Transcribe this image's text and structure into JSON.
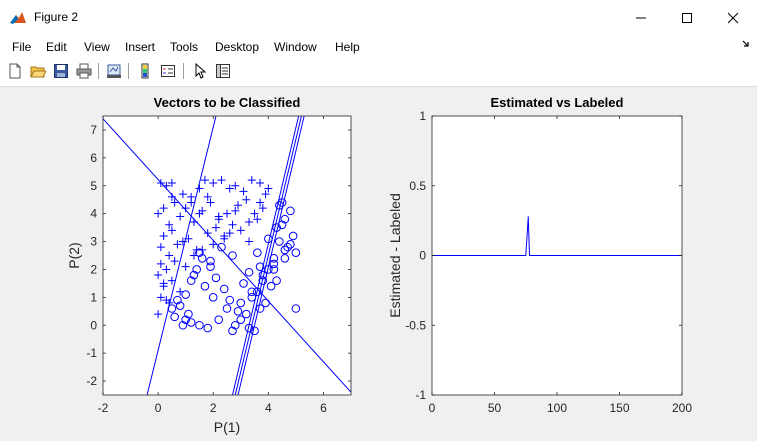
{
  "window": {
    "title": "Figure 2"
  },
  "menu": [
    "File",
    "Edit",
    "View",
    "Insert",
    "Tools",
    "Desktop",
    "Window",
    "Help"
  ],
  "toolbar_icons": [
    "new-figure-icon",
    "open-file-icon",
    "save-icon",
    "print-icon",
    "link-plot-icon",
    "insert-colorbar-icon",
    "insert-legend-icon",
    "edit-plot-icon",
    "property-inspector-icon"
  ],
  "colors": {
    "plot": "#0000ff",
    "axes": "#262626",
    "background": "#f0f0f0"
  },
  "chart_data": [
    {
      "type": "scatter",
      "title": "Vectors to be Classified",
      "xlabel": "P(1)",
      "ylabel": "P(2)",
      "xlim": [
        -2,
        7
      ],
      "ylim": [
        -2.5,
        7.5
      ],
      "xticks": [
        "-2",
        "0",
        "2",
        "4",
        "6"
      ],
      "yticks": [
        "-2",
        "-1",
        "0",
        "1",
        "2",
        "3",
        "4",
        "5",
        "6",
        "7"
      ],
      "series": [
        {
          "marker": "plus",
          "x": [
            0.1,
            0.3,
            0.5,
            0.0,
            0.2,
            0.6,
            0.4,
            0.8,
            1.0,
            1.2,
            1.5,
            1.7,
            2.0,
            2.3,
            2.6,
            2.8,
            3.1,
            3.4,
            3.7,
            3.9,
            4.0,
            0.2,
            0.5,
            0.9,
            1.3,
            1.6,
            1.9,
            2.2,
            2.5,
            2.9,
            3.2,
            3.5,
            3.8,
            0.1,
            0.4,
            0.7,
            1.1,
            1.4,
            1.8,
            2.1,
            2.4,
            2.7,
            3.0,
            3.3,
            3.6,
            0.0,
            0.3,
            0.6,
            1.0,
            1.3,
            1.6,
            2.0,
            2.4,
            0.2,
            0.5,
            0.8,
            0.1,
            0.4,
            0.0,
            0.3,
            0.2,
            0.1,
            0.5,
            1.5,
            1.2,
            0.9,
            2.2,
            2.8,
            3.3,
            3.7,
            1.8,
            2.6
          ],
          "y": [
            5.1,
            5.0,
            5.1,
            4.0,
            4.2,
            4.4,
            3.6,
            3.9,
            4.2,
            4.6,
            4.9,
            5.2,
            5.1,
            5.2,
            4.9,
            5.0,
            4.8,
            5.2,
            5.1,
            4.7,
            4.9,
            3.2,
            3.4,
            3.0,
            3.7,
            4.1,
            4.4,
            3.8,
            4.0,
            4.3,
            4.5,
            4.0,
            4.2,
            2.8,
            2.5,
            2.9,
            3.1,
            2.7,
            3.3,
            3.5,
            3.2,
            3.6,
            3.4,
            3.0,
            3.8,
            1.8,
            2.0,
            2.3,
            2.1,
            2.5,
            2.7,
            2.9,
            3.1,
            1.4,
            1.6,
            1.2,
            1.0,
            0.8,
            0.4,
            0.9,
            1.5,
            2.2,
            4.6,
            4.0,
            4.4,
            4.7,
            3.9,
            4.1,
            3.7,
            4.4,
            4.6,
            3.3
          ]
        },
        {
          "marker": "circle",
          "x": [
            4.5,
            4.8,
            4.6,
            4.3,
            4.9,
            4.4,
            4.7,
            5.0,
            4.6,
            4.2,
            4.0,
            3.8,
            4.3,
            4.1,
            3.6,
            3.4,
            3.9,
            3.7,
            3.2,
            3.0,
            2.8,
            3.3,
            3.5,
            2.9,
            2.6,
            2.4,
            2.1,
            1.9,
            1.6,
            1.4,
            1.2,
            1.0,
            0.8,
            0.6,
            1.5,
            1.8,
            2.2,
            2.5,
            2.0,
            1.7,
            1.3,
            1.1,
            0.9,
            3.1,
            3.6,
            4.0,
            4.5,
            4.8,
            4.2,
            3.7,
            3.3,
            2.7,
            2.3,
            1.9,
            1.5,
            1.2,
            0.7,
            0.5,
            1.0,
            2.7,
            3.0,
            3.4,
            3.8,
            4.2,
            4.6,
            5.0,
            4.4
          ],
          "y": [
            4.4,
            4.1,
            3.8,
            3.5,
            3.2,
            3.0,
            2.8,
            2.6,
            2.4,
            2.2,
            2.0,
            1.8,
            1.6,
            1.4,
            1.2,
            1.0,
            0.8,
            0.6,
            0.4,
            0.2,
            0.0,
            -0.1,
            -0.2,
            0.5,
            0.9,
            1.3,
            1.7,
            2.1,
            2.4,
            2.0,
            1.6,
            1.1,
            0.7,
            0.3,
            0.0,
            -0.1,
            0.2,
            0.6,
            1.0,
            1.4,
            1.8,
            0.4,
            0.0,
            1.5,
            2.6,
            3.1,
            3.6,
            2.9,
            2.4,
            2.1,
            1.9,
            2.5,
            2.8,
            2.3,
            2.6,
            0.1,
            0.9,
            0.6,
            0.2,
            -0.2,
            0.8,
            1.2,
            1.6,
            2.0,
            2.7,
            0.6,
            4.3
          ]
        }
      ],
      "lines": [
        {
          "x": [
            -2,
            7
          ],
          "y": [
            7.4,
            -2.4
          ]
        },
        {
          "x": [
            -0.4,
            2.1
          ],
          "y": [
            -2.5,
            7.5
          ]
        },
        {
          "x": [
            2.7,
            5.1
          ],
          "y": [
            -2.5,
            7.5
          ]
        },
        {
          "x": [
            2.8,
            5.2
          ],
          "y": [
            -2.5,
            7.5
          ]
        },
        {
          "x": [
            2.9,
            5.3
          ],
          "y": [
            -2.5,
            7.5
          ]
        }
      ]
    },
    {
      "type": "line",
      "title": "Estimated vs Labeled",
      "xlabel": "",
      "ylabel": "Estimated - Labeled",
      "xlim": [
        0,
        200
      ],
      "ylim": [
        -1,
        1
      ],
      "xticks": [
        "0",
        "50",
        "100",
        "150",
        "200"
      ],
      "yticks": [
        "-1",
        "-0.5",
        "0",
        "0.5",
        "1"
      ],
      "series": [
        {
          "x": [
            0,
            75,
            76,
            77,
            78,
            79,
            200
          ],
          "y": [
            0,
            0,
            0.13,
            0.28,
            0.0,
            0,
            0
          ]
        }
      ]
    }
  ]
}
